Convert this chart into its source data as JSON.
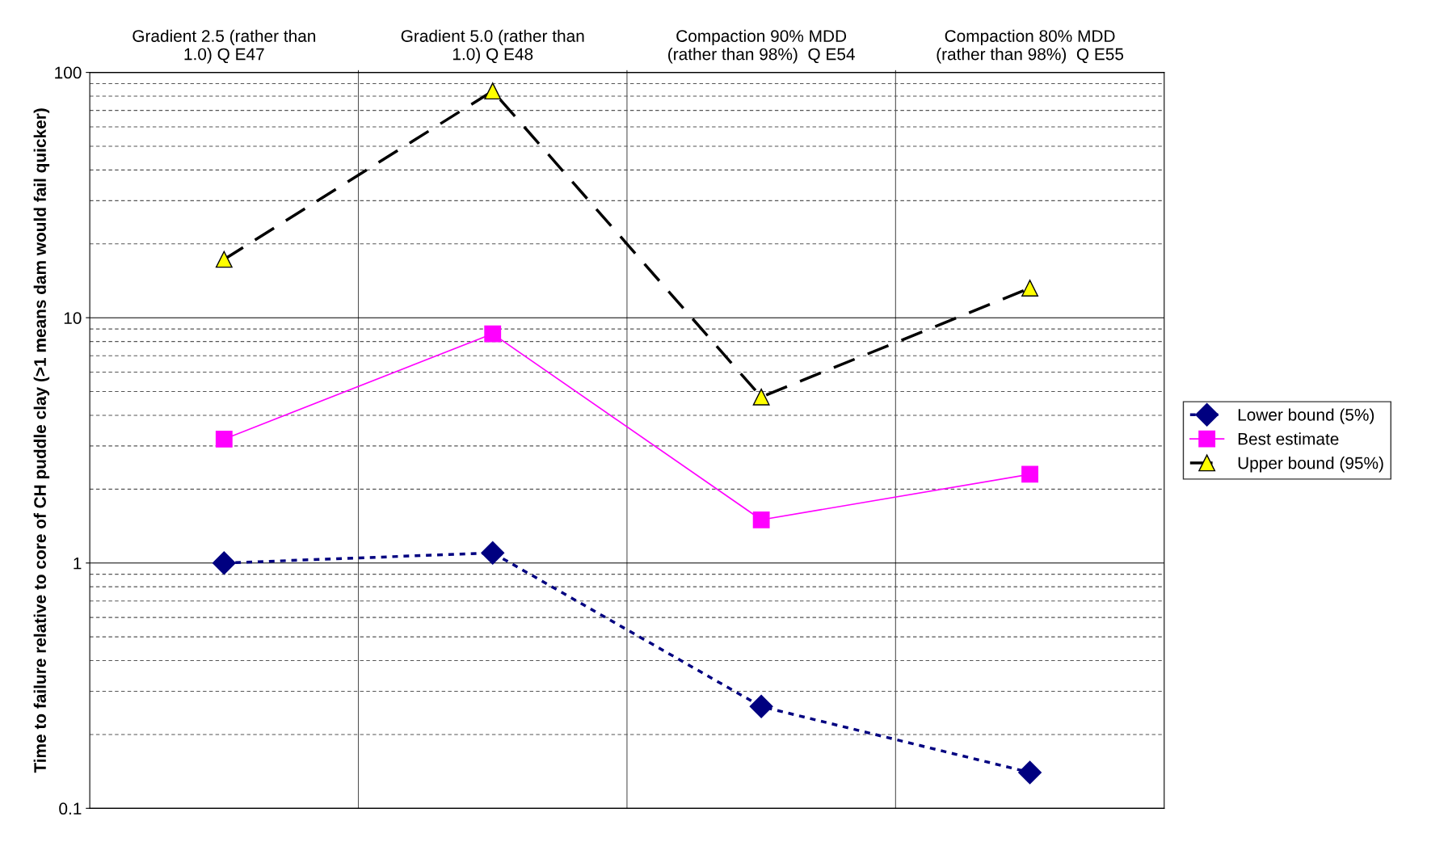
{
  "chart_data": {
    "type": "line",
    "ylabel": "Time to failure relative to core of CH puddle clay (>1 means dam would fail quicker)",
    "categories": [
      "Gradient 2.5 (rather than\n1.0) Q E47",
      "Gradient 5.0 (rather than\n1.0) Q E48",
      "Compaction 90% MDD\n(rather than 98%)  Q E54",
      "Compaction 80% MDD\n(rather than 98%)  Q E55"
    ],
    "series": [
      {
        "name": "Lower bound (5%)",
        "color": "#000080",
        "marker": "diamond",
        "line_style": "dotted",
        "values": [
          1.0,
          1.1,
          0.26,
          0.14
        ]
      },
      {
        "name": "Best estimate",
        "color": "#ff00ff",
        "marker": "square",
        "line_style": "solid",
        "values": [
          3.2,
          8.6,
          1.5,
          2.3
        ]
      },
      {
        "name": "Upper bound (95%)",
        "color": "#000000",
        "marker": "triangle",
        "line_style": "dashed",
        "values": [
          17.3,
          84,
          4.75,
          13.2
        ]
      }
    ],
    "log": "y",
    "ylim": [
      0.1,
      100
    ],
    "yticks": [
      0.1,
      1,
      10,
      100
    ],
    "grid": true,
    "legend": "right"
  }
}
